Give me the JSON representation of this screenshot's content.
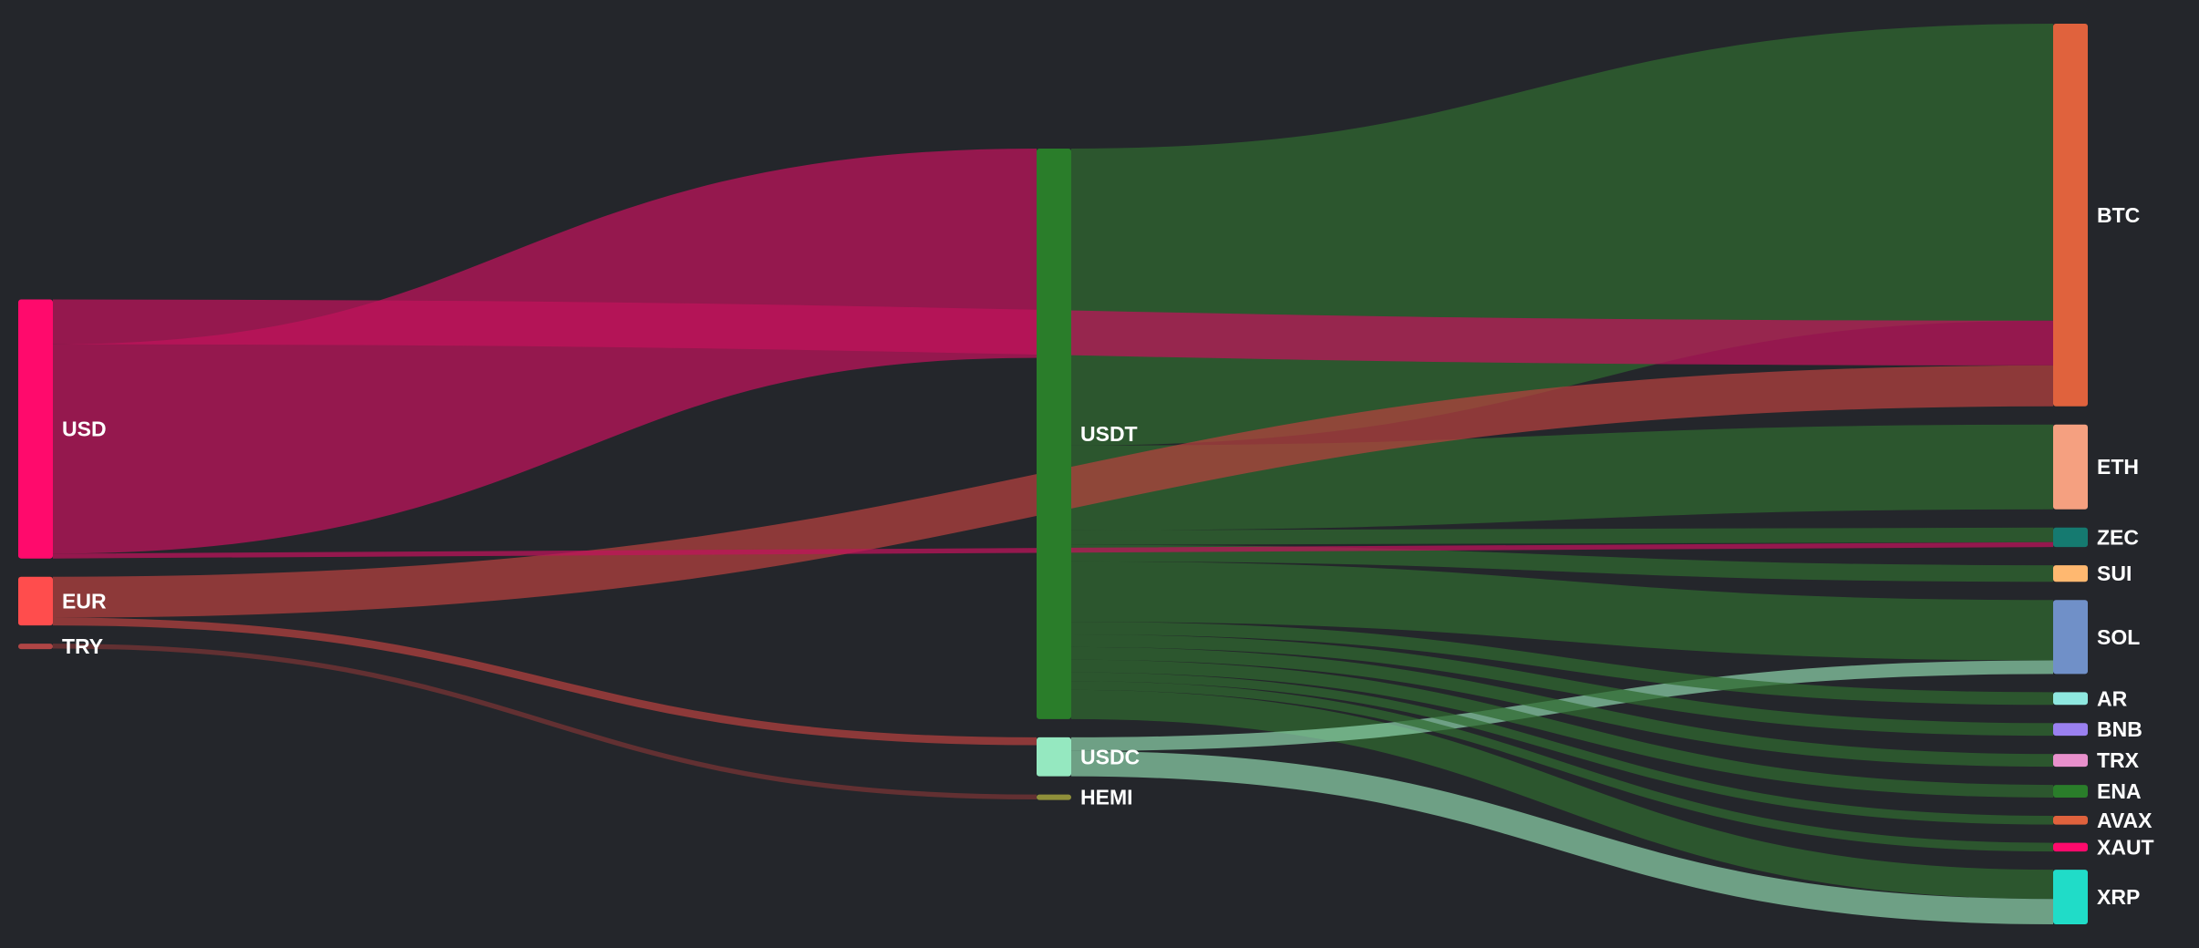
{
  "chart_data": {
    "type": "sankey",
    "title": "",
    "node_colors": {
      "USD": "#ff0a6c",
      "EUR": "#ff4d4d",
      "TRY": "#b04545",
      "USDT": "#2a7d2a",
      "USDC": "#95e8c0",
      "HEMI": "#8f8f3a",
      "BTC": "#e0623d",
      "ETH": "#f5a080",
      "ZEC": "#157a70",
      "SUI": "#ffb870",
      "SOL": "#7090c8",
      "AR": "#8fe8e0",
      "BNB": "#9a80f0",
      "TRX": "#e890cc",
      "ENA": "#2a7d2a",
      "AVAX": "#e0623d",
      "XAUT": "#ff0a6c",
      "XRP": "#20dcc8"
    },
    "link_colors": {
      "USD": "#c0145c",
      "EUR": "#b5413f",
      "TRY": "#7a3535",
      "USDT": "#2f6a2f",
      "USDC": "#8ad0a8"
    },
    "columns": [
      [
        "USD",
        "EUR",
        "TRY"
      ],
      [
        "USDT",
        "USDC",
        "HEMI"
      ],
      [
        "BTC",
        "ETH",
        "ZEC",
        "SUI",
        "SOL",
        "AR",
        "BNB",
        "TRX",
        "ENA",
        "AVAX",
        "XAUT",
        "XRP"
      ]
    ],
    "nodes": [
      {
        "id": "USD",
        "label": "USD"
      },
      {
        "id": "EUR",
        "label": "EUR"
      },
      {
        "id": "TRY",
        "label": "TRY"
      },
      {
        "id": "USDT",
        "label": "USDT"
      },
      {
        "id": "USDC",
        "label": "USDC"
      },
      {
        "id": "HEMI",
        "label": "HEMI"
      },
      {
        "id": "BTC",
        "label": "BTC"
      },
      {
        "id": "ETH",
        "label": "ETH"
      },
      {
        "id": "ZEC",
        "label": "ZEC"
      },
      {
        "id": "SUI",
        "label": "SUI"
      },
      {
        "id": "SOL",
        "label": "SOL"
      },
      {
        "id": "AR",
        "label": "AR"
      },
      {
        "id": "BNB",
        "label": "BNB"
      },
      {
        "id": "TRX",
        "label": "TRX"
      },
      {
        "id": "ENA",
        "label": "ENA"
      },
      {
        "id": "AVAX",
        "label": "AVAX"
      },
      {
        "id": "XAUT",
        "label": "XAUT"
      },
      {
        "id": "XRP",
        "label": "XRP"
      }
    ],
    "links": [
      {
        "source": "USD",
        "target": "USDT",
        "value": 215
      },
      {
        "source": "USD",
        "target": "BTC",
        "value": 46
      },
      {
        "source": "USD",
        "target": "ZEC",
        "value": 5
      },
      {
        "source": "EUR",
        "target": "BTC",
        "value": 42
      },
      {
        "source": "EUR",
        "target": "USDC",
        "value": 8
      },
      {
        "source": "TRY",
        "target": "HEMI",
        "value": 5
      },
      {
        "source": "USDT",
        "target": "BTC",
        "value": 305
      },
      {
        "source": "USDT",
        "target": "ETH",
        "value": 87
      },
      {
        "source": "USDT",
        "target": "ZEC",
        "value": 15
      },
      {
        "source": "USDT",
        "target": "SUI",
        "value": 17
      },
      {
        "source": "USDT",
        "target": "SOL",
        "value": 62
      },
      {
        "source": "USDT",
        "target": "AR",
        "value": 13
      },
      {
        "source": "USDT",
        "target": "BNB",
        "value": 13
      },
      {
        "source": "USDT",
        "target": "TRX",
        "value": 13
      },
      {
        "source": "USDT",
        "target": "ENA",
        "value": 13
      },
      {
        "source": "USDT",
        "target": "AVAX",
        "value": 9
      },
      {
        "source": "USDT",
        "target": "XAUT",
        "value": 9
      },
      {
        "source": "USDT",
        "target": "XRP",
        "value": 30
      },
      {
        "source": "USDC",
        "target": "SOL",
        "value": 14
      },
      {
        "source": "USDC",
        "target": "XRP",
        "value": 26
      }
    ]
  }
}
